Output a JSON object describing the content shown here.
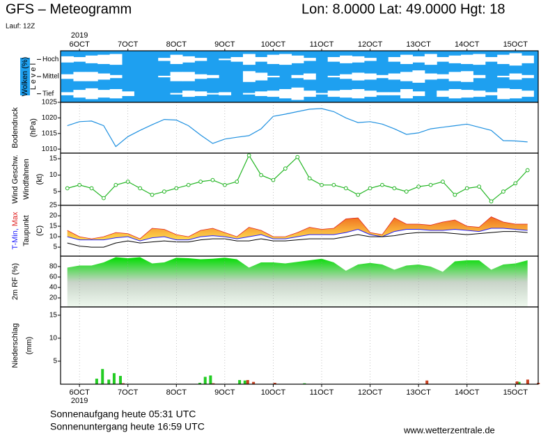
{
  "title": "GFS – Meteogramm",
  "location": "Lon: 8.0000 Lat: 49.0000 Hgt: 18",
  "run": "Lauf: 12Z",
  "sunrise": "Sonnenaufgang heute 05:31 UTC",
  "sunset": "Sonnenuntergang heute 16:59 UTC",
  "source": "www.wetterzentrale.de",
  "x_axis": {
    "year": "2019",
    "xlim": [
      -0.39,
      9.47
    ],
    "xticks": [
      {
        "value": 0,
        "label": "6OCT"
      },
      {
        "value": 1,
        "label": "7OCT"
      },
      {
        "value": 2,
        "label": "8OCT"
      },
      {
        "value": 3,
        "label": "9OCT"
      },
      {
        "value": 4,
        "label": "10OCT"
      },
      {
        "value": 5,
        "label": "11OCT"
      },
      {
        "value": 6,
        "label": "12OCT"
      },
      {
        "value": 7,
        "label": "13OCT"
      },
      {
        "value": 8,
        "label": "14OCT"
      },
      {
        "value": 9,
        "label": "15OCT"
      }
    ]
  },
  "chart_data": [
    {
      "type": "clouds",
      "ylabel": "Wolken (%)",
      "ylabel2": "L e v e l",
      "background": "#1ea0f0",
      "x": [
        -0.25,
        0,
        0.25,
        0.5,
        0.75,
        1,
        1.25,
        1.5,
        1.75,
        2,
        2.25,
        2.5,
        2.75,
        3,
        3.25,
        3.5,
        3.75,
        4,
        4.25,
        4.5,
        4.75,
        5,
        5.25,
        5.5,
        5.75,
        6,
        6.25,
        6.5,
        6.75,
        7,
        7.25,
        7.5,
        7.75,
        8,
        8.25,
        8.5,
        8.75,
        9,
        9.25
      ],
      "series": [
        {
          "name": "Hoch",
          "color": "#ffffff",
          "values": [
            40,
            30,
            50,
            60,
            70,
            0,
            0,
            0,
            20,
            60,
            40,
            20,
            0,
            10,
            30,
            70,
            30,
            60,
            70,
            50,
            20,
            0,
            30,
            50,
            40,
            20,
            0,
            30,
            60,
            40,
            70,
            30,
            50,
            60,
            70,
            30,
            60,
            80,
            50
          ]
        },
        {
          "name": "Mittel",
          "color": "#ffffff",
          "values": [
            30,
            60,
            60,
            40,
            20,
            0,
            0,
            0,
            10,
            60,
            60,
            30,
            20,
            0,
            0,
            70,
            50,
            10,
            0,
            20,
            40,
            0,
            10,
            30,
            50,
            40,
            20,
            40,
            60,
            80,
            40,
            30,
            60,
            70,
            20,
            0,
            10,
            40,
            20
          ]
        },
        {
          "name": "Tief",
          "color": "#ffffff",
          "values": [
            20,
            50,
            70,
            50,
            60,
            30,
            0,
            0,
            0,
            10,
            40,
            30,
            10,
            20,
            0,
            10,
            30,
            40,
            60,
            80,
            40,
            10,
            40,
            50,
            60,
            40,
            20,
            20,
            60,
            30,
            0,
            40,
            60,
            50,
            40,
            20,
            70,
            60,
            40
          ]
        }
      ]
    },
    {
      "type": "line",
      "ylabel": "Bodendruck",
      "yunit": "(hPa)",
      "ylim": [
        1008.7,
        1025
      ],
      "yticks": [
        1010,
        1015,
        1020,
        1025
      ],
      "x": [
        -0.25,
        0,
        0.25,
        0.5,
        0.75,
        1,
        1.25,
        1.5,
        1.75,
        2,
        2.25,
        2.5,
        2.75,
        3,
        3.25,
        3.5,
        3.75,
        4,
        4.25,
        4.5,
        4.75,
        5,
        5.25,
        5.5,
        5.75,
        6,
        6.25,
        6.5,
        6.75,
        7,
        7.25,
        7.5,
        7.75,
        8,
        8.25,
        8.5,
        8.75,
        9,
        9.25
      ],
      "series": [
        {
          "color": "#1e90e0",
          "values": [
            1017.5,
            1018.8,
            1019,
            1017.5,
            1010.8,
            1014,
            1016,
            1017.8,
            1019.5,
            1019.3,
            1017.5,
            1014.5,
            1011.8,
            1013.2,
            1013.8,
            1014.3,
            1016.5,
            1020.5,
            1021.2,
            1022,
            1022.8,
            1023,
            1022,
            1020,
            1018.5,
            1018.8,
            1018,
            1016.5,
            1014.7,
            1015.2,
            1016.5,
            1017,
            1017.5,
            1018,
            1017,
            1016,
            1012.7,
            1012.6,
            1012.3
          ]
        }
      ]
    },
    {
      "type": "line",
      "ylabel": "Windfahnen",
      "yunit": "(kt)",
      "ylim": [
        0.8,
        16.7
      ],
      "yticks": [
        5,
        10,
        15
      ],
      "x": [
        -0.25,
        0,
        0.25,
        0.5,
        0.75,
        1,
        1.25,
        1.5,
        1.75,
        2,
        2.25,
        2.5,
        2.75,
        3,
        3.25,
        3.5,
        3.75,
        4,
        4.25,
        4.5,
        4.75,
        5,
        5.25,
        5.5,
        5.75,
        6,
        6.25,
        6.5,
        6.75,
        7,
        7.25,
        7.5,
        7.75,
        8,
        8.25,
        8.5,
        8.75,
        9,
        9.25
      ],
      "series": [
        {
          "name": "Wind Geschw.",
          "color": "#22b522",
          "markers": true,
          "values": [
            6,
            7,
            6,
            3,
            7,
            8,
            6,
            4,
            5,
            6,
            7,
            8,
            8.5,
            7,
            8,
            16,
            10,
            8.5,
            12,
            15.5,
            9,
            7,
            7,
            6,
            4,
            6,
            7,
            6,
            5,
            6.5,
            7,
            8,
            4,
            6,
            6.5,
            2,
            5,
            7.5,
            11.5
          ]
        }
      ]
    },
    {
      "type": "range",
      "yunit": "(C)",
      "ylim": [
        0.7,
        25
      ],
      "yticks": [
        5,
        10,
        15,
        20,
        25
      ],
      "fill_colors": [
        "#f07020",
        "#ffe050"
      ],
      "x": [
        -0.25,
        0,
        0.25,
        0.5,
        0.75,
        1,
        1.25,
        1.5,
        1.75,
        2,
        2.25,
        2.5,
        2.75,
        3,
        3.25,
        3.5,
        3.75,
        4,
        4.25,
        4.5,
        4.75,
        5,
        5.25,
        5.5,
        5.75,
        6,
        6.25,
        6.5,
        6.75,
        7,
        7.25,
        7.5,
        7.75,
        8,
        8.25,
        8.5,
        8.75,
        9,
        9.25
      ],
      "series": [
        {
          "name": "T-Min,",
          "color": "#2020ff",
          "values": [
            10,
            8.5,
            8.5,
            8.5,
            9.5,
            10,
            8,
            9.5,
            10,
            8.5,
            8.5,
            10,
            10.5,
            10,
            9,
            10,
            11,
            9,
            9,
            10,
            11,
            11,
            11,
            12,
            13.5,
            11,
            10,
            12.5,
            13.5,
            13.5,
            13,
            13,
            13.5,
            13,
            12.5,
            14,
            14,
            13.5,
            13
          ]
        },
        {
          "name": "Max",
          "color": "#e02020",
          "values": [
            13,
            10,
            9,
            10,
            12,
            11.5,
            9,
            14,
            13.5,
            11,
            10,
            13,
            14,
            12,
            10,
            14.5,
            13,
            10,
            10,
            12,
            14.5,
            13.5,
            14,
            18.5,
            19,
            12,
            11,
            19,
            16,
            16,
            15.5,
            17,
            18,
            15,
            14.5,
            19.5,
            17,
            16,
            16
          ]
        },
        {
          "name": "Taupunkt",
          "color": "#000000",
          "values": [
            7,
            5.5,
            5,
            5,
            7,
            8,
            7,
            7.5,
            8,
            7.5,
            7.5,
            8.5,
            9,
            9,
            8,
            8,
            9,
            8,
            8,
            8.5,
            9,
            9,
            9,
            10,
            11,
            10,
            10,
            10.5,
            11.5,
            12,
            12,
            12,
            11.5,
            11,
            11.5,
            12,
            12.5,
            12.5,
            12
          ]
        }
      ]
    },
    {
      "type": "area",
      "ylabel": "2m RF (%)",
      "color": "#11cc11",
      "fill_colors": [
        "#00dd00",
        "#c8d4c8",
        "#eef8ee"
      ],
      "ylim": [
        2.7,
        100
      ],
      "yticks": [
        20,
        40,
        60,
        80
      ],
      "x": [
        -0.25,
        0,
        0.25,
        0.5,
        0.75,
        1,
        1.25,
        1.5,
        1.75,
        2,
        2.25,
        2.5,
        2.75,
        3,
        3.25,
        3.5,
        3.75,
        4,
        4.25,
        4.5,
        4.75,
        5,
        5.25,
        5.5,
        5.75,
        6,
        6.25,
        6.5,
        6.75,
        7,
        7.25,
        7.5,
        7.75,
        8,
        8.25,
        8.5,
        8.75,
        9,
        9.25
      ],
      "values": [
        78,
        82,
        82,
        88,
        98,
        96,
        98,
        86,
        88,
        97,
        96,
        94,
        95,
        97,
        94,
        78,
        88,
        88,
        86,
        89,
        92,
        95,
        88,
        72,
        84,
        87,
        84,
        74,
        82,
        84,
        80,
        70,
        90,
        92,
        92,
        74,
        84,
        86,
        92
      ]
    },
    {
      "type": "bar",
      "ylabel": "Niederschlag",
      "yunit": "(mm)",
      "ylim": [
        0,
        16.8
      ],
      "yticks": [
        5,
        10,
        15
      ],
      "x": [
        0.37,
        0.49,
        0.62,
        0.73,
        0.86,
        2.5,
        2.61,
        2.72,
        3.32,
        3.43,
        3.55,
        3.99,
        4.66,
        7.13,
        8.99,
        9.09,
        9.21,
        9.43
      ],
      "series": [
        {
          "color": "#22cc22",
          "values": [
            1.2,
            3.3,
            1.0,
            2.4,
            1.8,
            0.3,
            1.6,
            1.9,
            0.9,
            0.8,
            0,
            0,
            0.2,
            0,
            0,
            0.5,
            0,
            0
          ]
        },
        {
          "color": "#c84020",
          "values": [
            0,
            0,
            0,
            0,
            0.2,
            0,
            0,
            0.2,
            0,
            0.9,
            0.5,
            0.3,
            0,
            0.8,
            0.6,
            0,
            1.0,
            0.3
          ]
        }
      ]
    }
  ]
}
